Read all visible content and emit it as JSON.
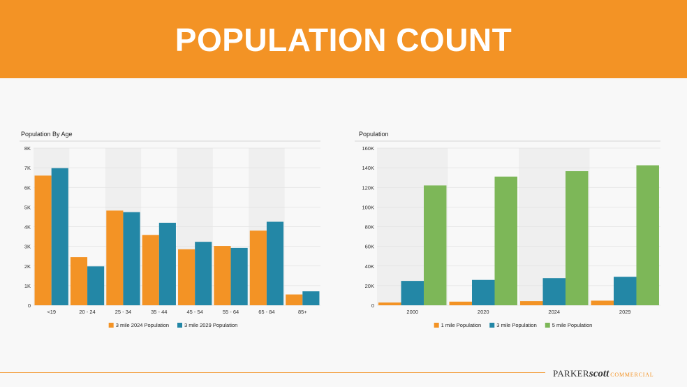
{
  "header": {
    "title": "POPULATION COUNT"
  },
  "colors": {
    "banner": "#f39325",
    "orange": "#f39325",
    "blue": "#2387a6",
    "green": "#7db758",
    "band": "#efefef"
  },
  "footer": {
    "logo_parker": "PARKER",
    "logo_scott": "scott",
    "logo_commercial": "COMMERCIAL"
  },
  "chart_data": [
    {
      "type": "bar",
      "title": "Population By Age",
      "categories": [
        "<19",
        "20 - 24",
        "25 - 34",
        "35 - 44",
        "45 - 54",
        "55 - 64",
        "65 - 84",
        "85+"
      ],
      "series": [
        {
          "name": "3 mile 2024 Population",
          "color": "#f39325",
          "values": [
            6600,
            2450,
            4820,
            3580,
            2850,
            3020,
            3800,
            550
          ]
        },
        {
          "name": "3 mile 2029 Population",
          "color": "#2387a6",
          "values": [
            6980,
            1980,
            4740,
            4200,
            3230,
            2920,
            4250,
            710
          ]
        }
      ],
      "ylim": [
        0,
        8000
      ],
      "yticks": [
        "0",
        "1K",
        "2K",
        "3K",
        "4K",
        "5K",
        "6K",
        "7K",
        "8K"
      ],
      "legend": "bottom-center",
      "alternating_bands": true
    },
    {
      "type": "bar",
      "title": "Population",
      "categories": [
        "2000",
        "2020",
        "2024",
        "2029"
      ],
      "series": [
        {
          "name": "1 mile Population",
          "color": "#f39325",
          "values": [
            2800,
            3700,
            4200,
            4700
          ]
        },
        {
          "name": "3 mile Population",
          "color": "#2387a6",
          "values": [
            24800,
            25800,
            27600,
            29000
          ]
        },
        {
          "name": "5 mile Population",
          "color": "#7db758",
          "values": [
            122000,
            131000,
            136500,
            142500
          ]
        }
      ],
      "ylim": [
        0,
        160000
      ],
      "yticks": [
        "0",
        "20K",
        "40K",
        "60K",
        "80K",
        "100K",
        "120K",
        "140K",
        "160K"
      ],
      "legend": "bottom-center",
      "alternating_bands": true
    }
  ]
}
